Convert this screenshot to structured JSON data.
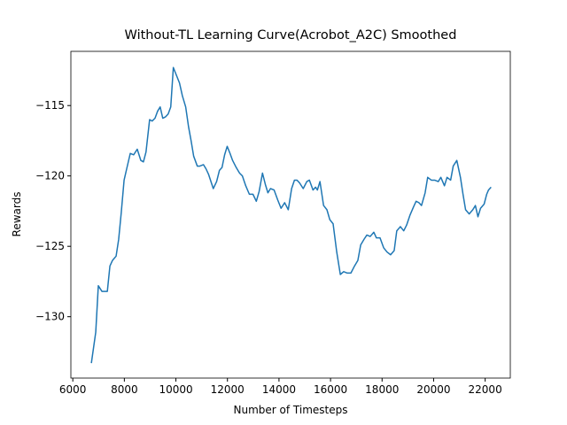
{
  "chart_data": {
    "type": "line",
    "title": "Without-TL Learning Curve(Acrobot_A2C) Smoothed",
    "xlabel": "Number of Timesteps",
    "ylabel": "Rewards",
    "xlim": [
      5925,
      22975
    ],
    "ylim": [
      -134.36,
      -111.15
    ],
    "xticks": [
      6000,
      8000,
      10000,
      12000,
      14000,
      16000,
      18000,
      20000,
      22000
    ],
    "yticks": [
      {
        "value": -130,
        "label": "−130"
      },
      {
        "value": -125,
        "label": "−125"
      },
      {
        "value": -120,
        "label": "−120"
      },
      {
        "value": -115,
        "label": "−115"
      }
    ],
    "grid": false,
    "series": [
      {
        "color": "#1f77b4",
        "x": [
          6720,
          6890,
          6990,
          7130,
          7340,
          7440,
          7540,
          7680,
          7780,
          7880,
          7990,
          8090,
          8230,
          8360,
          8500,
          8640,
          8740,
          8840,
          8980,
          9080,
          9190,
          9290,
          9390,
          9490,
          9600,
          9700,
          9800,
          9900,
          10010,
          10140,
          10250,
          10380,
          10490,
          10590,
          10690,
          10830,
          10930,
          11070,
          11170,
          11270,
          11450,
          11580,
          11690,
          11790,
          11890,
          11990,
          12100,
          12200,
          12340,
          12470,
          12580,
          12710,
          12850,
          12990,
          13120,
          13230,
          13360,
          13470,
          13570,
          13670,
          13810,
          13950,
          14080,
          14220,
          14360,
          14490,
          14600,
          14700,
          14800,
          14940,
          15080,
          15180,
          15320,
          15420,
          15490,
          15590,
          15730,
          15860,
          15970,
          16100,
          16240,
          16380,
          16510,
          16650,
          16790,
          16930,
          17060,
          17170,
          17300,
          17410,
          17540,
          17680,
          17780,
          17920,
          18060,
          18190,
          18330,
          18470,
          18570,
          18710,
          18840,
          18950,
          19080,
          19220,
          19320,
          19430,
          19530,
          19670,
          19770,
          19910,
          20040,
          20180,
          20280,
          20420,
          20520,
          20660,
          20760,
          20900,
          21040,
          21140,
          21240,
          21380,
          21520,
          21620,
          21720,
          21820,
          21960,
          22060,
          22130,
          22230
        ],
        "values": [
          -133.3,
          -131.1,
          -127.8,
          -128.2,
          -128.2,
          -126.4,
          -126.0,
          -125.7,
          -124.5,
          -122.6,
          -120.3,
          -119.5,
          -118.4,
          -118.5,
          -118.1,
          -118.9,
          -119.0,
          -118.3,
          -116.0,
          -116.1,
          -115.9,
          -115.4,
          -115.1,
          -115.9,
          -115.8,
          -115.6,
          -115.1,
          -112.3,
          -112.8,
          -113.4,
          -114.3,
          -115.1,
          -116.5,
          -117.5,
          -118.6,
          -119.3,
          -119.3,
          -119.2,
          -119.5,
          -119.9,
          -120.9,
          -120.4,
          -119.6,
          -119.4,
          -118.5,
          -117.9,
          -118.4,
          -118.9,
          -119.4,
          -119.8,
          -120.0,
          -120.7,
          -121.3,
          -121.3,
          -121.8,
          -121.1,
          -119.8,
          -120.6,
          -121.2,
          -120.9,
          -121.0,
          -121.7,
          -122.3,
          -121.9,
          -122.4,
          -120.9,
          -120.3,
          -120.3,
          -120.5,
          -120.9,
          -120.4,
          -120.3,
          -121.0,
          -120.8,
          -121.0,
          -120.4,
          -122.1,
          -122.4,
          -123.1,
          -123.4,
          -125.4,
          -127.0,
          -126.8,
          -126.9,
          -126.9,
          -126.4,
          -126.0,
          -124.9,
          -124.5,
          -124.2,
          -124.3,
          -124.0,
          -124.4,
          -124.4,
          -125.1,
          -125.4,
          -125.6,
          -125.3,
          -123.9,
          -123.6,
          -123.9,
          -123.5,
          -122.8,
          -122.2,
          -121.8,
          -121.9,
          -122.1,
          -121.2,
          -120.1,
          -120.3,
          -120.3,
          -120.4,
          -120.1,
          -120.7,
          -120.1,
          -120.3,
          -119.3,
          -118.9,
          -120.1,
          -121.3,
          -122.4,
          -122.7,
          -122.4,
          -122.1,
          -122.9,
          -122.3,
          -122.0,
          -121.3,
          -121.0,
          -120.8
        ]
      }
    ]
  }
}
